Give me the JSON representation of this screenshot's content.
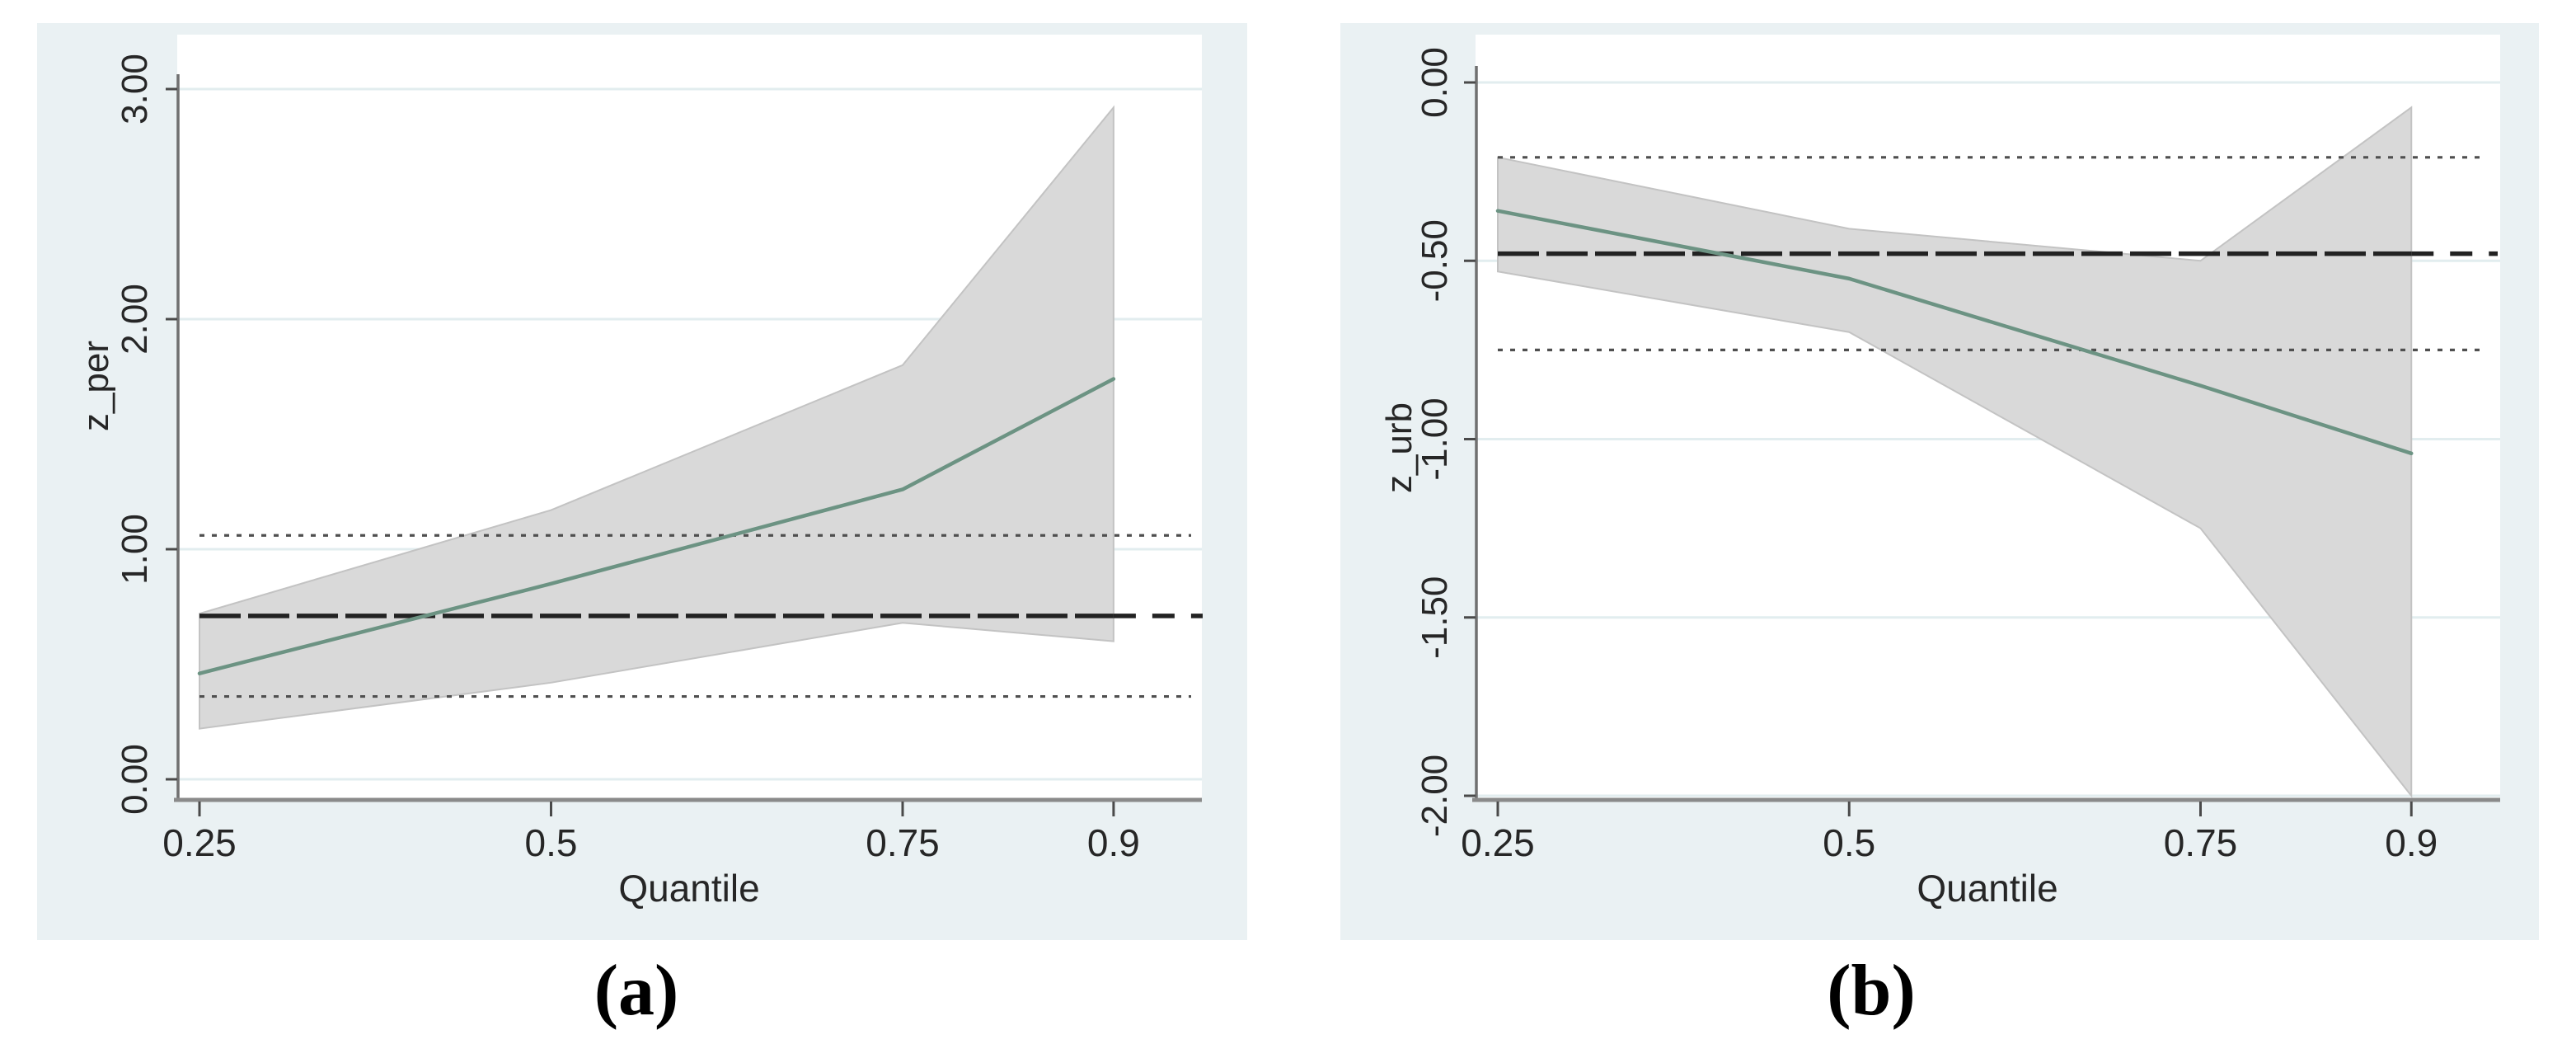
{
  "figure": {
    "description": "Two Stata-style quantile regression coefficient plots with OLS reference lines",
    "captions": [
      "(a)",
      "(b)"
    ]
  },
  "chart_data": [
    {
      "id": "a",
      "type": "line",
      "panel_caption": "(a)",
      "xlabel": "Quantile",
      "ylabel": "z_per",
      "x_tick_labels": [
        "0.25",
        "0.5",
        "0.75",
        "0.9"
      ],
      "x_tick_values": [
        0.25,
        0.5,
        0.75,
        0.9
      ],
      "y_tick_labels": [
        "0.00",
        "1.00",
        "2.00",
        "3.00"
      ],
      "y_tick_values": [
        0,
        1,
        2,
        3
      ],
      "xlim": [
        0.234,
        0.963
      ],
      "ylim": [
        -0.09,
        3.06
      ],
      "grid": true,
      "legend_position": "none",
      "quantiles": [
        0.25,
        0.5,
        0.75,
        0.9
      ],
      "series": [
        {
          "name": "quantile-regression-coefficient",
          "values": [
            0.46,
            0.85,
            1.26,
            1.74
          ]
        }
      ],
      "ci_lower": [
        0.22,
        0.42,
        0.68,
        0.6
      ],
      "ci_upper": [
        0.72,
        1.17,
        1.8,
        2.92
      ],
      "ols_estimate": 0.71,
      "ols_ci": [
        0.36,
        1.06
      ],
      "colors": {
        "line": "#6c9383",
        "band": "#d9d9d9",
        "band_edge": "#c3c3c3",
        "ols_line": "#222222",
        "ols_ci_line": "#4f4f4f",
        "grid": "#e2edef",
        "axis": "#8a8a8a",
        "tick": "#4a4a4a",
        "panel_bg": "#eaf1f3",
        "plot_bg": "#ffffff",
        "text": "#262626"
      }
    },
    {
      "id": "b",
      "type": "line",
      "panel_caption": "(b)",
      "xlabel": "Quantile",
      "ylabel": "z_urb",
      "x_tick_labels": [
        "0.25",
        "0.5",
        "0.75",
        "0.9"
      ],
      "x_tick_values": [
        0.25,
        0.5,
        0.75,
        0.9
      ],
      "y_tick_labels": [
        "0.00",
        "-0.50",
        "-1.00",
        "-1.50",
        "-2.00"
      ],
      "y_tick_values": [
        0,
        -0.5,
        -1,
        -1.5,
        -2
      ],
      "xlim": [
        0.234,
        0.963
      ],
      "ylim": [
        -2.01,
        0.02
      ],
      "grid": true,
      "legend_position": "none",
      "quantiles": [
        0.25,
        0.5,
        0.75,
        0.9
      ],
      "series": [
        {
          "name": "quantile-regression-coefficient",
          "values": [
            -0.36,
            -0.55,
            -0.85,
            -1.04
          ]
        }
      ],
      "ci_lower": [
        -0.53,
        -0.7,
        -1.25,
        -2.0
      ],
      "ci_upper": [
        -0.21,
        -0.41,
        -0.5,
        -0.07
      ],
      "ols_estimate": -0.48,
      "ols_ci": [
        -0.75,
        -0.21
      ],
      "colors": {
        "line": "#6c9383",
        "band": "#d9d9d9",
        "band_edge": "#c3c3c3",
        "ols_line": "#222222",
        "ols_ci_line": "#4f4f4f",
        "grid": "#e2edef",
        "axis": "#8a8a8a",
        "tick": "#4a4a4a",
        "panel_bg": "#eaf1f3",
        "plot_bg": "#ffffff",
        "text": "#262626"
      }
    }
  ]
}
